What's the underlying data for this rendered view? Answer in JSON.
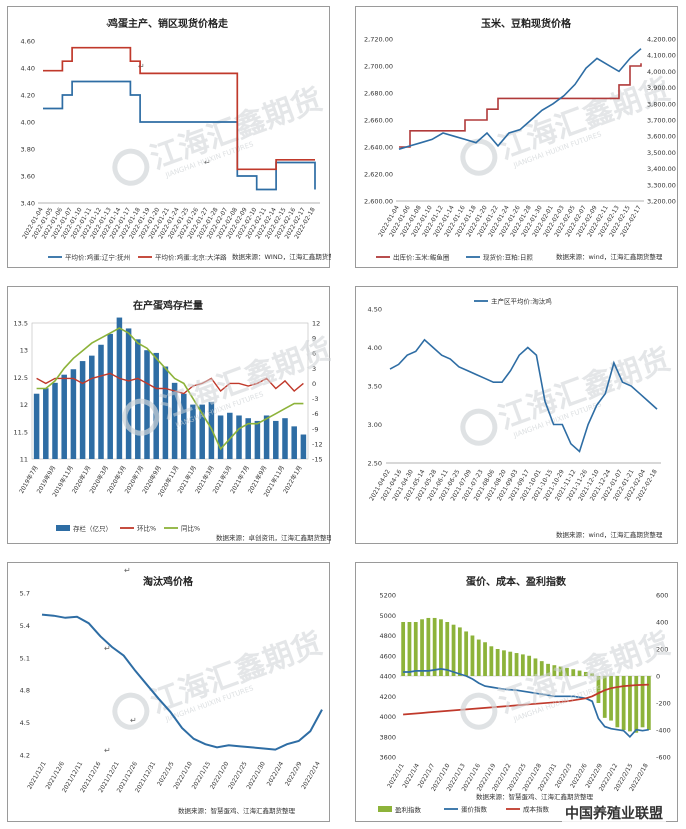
{
  "footer": {
    "brand": "中国养殖业联盟"
  },
  "watermark": {
    "cn": "江海汇鑫期货",
    "en": "JIANGHAI HUIXIN FUTURES"
  },
  "return_mark": "↵",
  "chart_data": [
    {
      "id": "p1",
      "type": "line",
      "title": "鸡蛋主产、销区现货价格走",
      "ylim": [
        3.4,
        4.6
      ],
      "yticks": [
        "3.40",
        "3.60",
        "3.80",
        "4.00",
        "4.20",
        "4.40",
        "4.60"
      ],
      "x": [
        "2022-01-04",
        "2022-01-05",
        "2022-01-06",
        "2022-01-07",
        "2022-01-10",
        "2022-01-11",
        "2022-01-12",
        "2022-01-13",
        "2022-01-14",
        "2022-01-17",
        "2022-01-18",
        "2022-01-19",
        "2022-01-20",
        "2022-01-21",
        "2022-01-24",
        "2022-01-25",
        "2022-01-26",
        "2022-01-27",
        "2022-01-28",
        "2022-02-07",
        "2022-02-08",
        "2022-02-09",
        "2022-02-10",
        "2022-02-11",
        "2022-02-14",
        "2022-02-15",
        "2022-02-16",
        "2022-02-17",
        "2022-02-18"
      ],
      "series": [
        {
          "name": "平均价:鸡蛋:辽宁:抚州",
          "color": "#2e6da4",
          "values": [
            4.1,
            4.1,
            4.2,
            4.3,
            4.3,
            4.3,
            4.3,
            4.3,
            4.3,
            4.2,
            4.0,
            4.0,
            4.0,
            4.0,
            4.0,
            4.0,
            4.0,
            4.0,
            4.0,
            4.0,
            3.6,
            3.6,
            3.5,
            3.5,
            3.7,
            3.7,
            3.7,
            3.7,
            3.5
          ]
        },
        {
          "name": "平均价:鸡蛋:北京:大洋路",
          "color": "#c0392b",
          "values": [
            4.38,
            4.38,
            4.45,
            4.55,
            4.55,
            4.55,
            4.55,
            4.55,
            4.55,
            4.45,
            4.36,
            4.36,
            4.36,
            4.36,
            4.36,
            4.36,
            4.36,
            4.36,
            4.36,
            4.36,
            3.65,
            3.65,
            3.65,
            3.65,
            3.72,
            3.72,
            3.72,
            3.72,
            3.72
          ]
        }
      ],
      "source": "数据来源：WIND，江海汇鑫期货整理"
    },
    {
      "id": "p2",
      "type": "line",
      "title": "玉米、豆粕现货价格",
      "ylim": [
        2600,
        2720
      ],
      "yticks": [
        "2,600.00",
        "2,620.00",
        "2,640.00",
        "2,660.00",
        "2,680.00",
        "2,700.00",
        "2,720.00"
      ],
      "y2lim": [
        3200,
        4200
      ],
      "y2ticks": [
        "3,200.00",
        "3,300.00",
        "3,400.00",
        "3,500.00",
        "3,600.00",
        "3,700.00",
        "3,800.00",
        "3,900.00",
        "4,000.00",
        "4,100.00",
        "4,200.00"
      ],
      "x": [
        "2022-01-04",
        "2022-01-06",
        "2022-01-08",
        "2022-01-10",
        "2022-01-12",
        "2022-01-14",
        "2022-01-16",
        "2022-01-18",
        "2022-01-20",
        "2022-01-22",
        "2022-01-24",
        "2022-01-26",
        "2022-01-28",
        "2022-01-30",
        "2022-02-01",
        "2022-02-03",
        "2022-02-05",
        "2022-02-07",
        "2022-02-09",
        "2022-02-11",
        "2022-02-13",
        "2022-02-15",
        "2022-02-17"
      ],
      "series": [
        {
          "name": "出库价:玉米:鲅鱼圈",
          "axis": "left",
          "color": "#b03a3a",
          "values": [
            2640,
            2652,
            2652,
            2652,
            2652,
            2652,
            2660,
            2660,
            2668,
            2676,
            2676,
            2676,
            2676,
            2676,
            2676,
            2676,
            2676,
            2676,
            2676,
            2676,
            2686,
            2700,
            2702
          ]
        },
        {
          "name": "现货价:豆粕:日照",
          "axis": "right",
          "color": "#2e6da4",
          "values": [
            3520,
            3540,
            3560,
            3580,
            3620,
            3600,
            3580,
            3560,
            3620,
            3540,
            3620,
            3640,
            3700,
            3760,
            3800,
            3850,
            3920,
            4020,
            4080,
            4040,
            4000,
            4080,
            4140
          ]
        }
      ],
      "source": "数据来源：wind，江海汇鑫期货整理"
    },
    {
      "id": "p3",
      "type": "bar",
      "title": "在产蛋鸡存栏量",
      "ylim": [
        11,
        13.5
      ],
      "yticks": [
        "11",
        "11.5",
        "12",
        "12.5",
        "13",
        "13.5"
      ],
      "y2lim": [
        -15,
        12
      ],
      "y2ticks": [
        "12",
        "9",
        "6",
        "3",
        "0",
        "-3",
        "-6",
        "-9",
        "-12",
        "-15"
      ],
      "xticks": [
        "2019年7月",
        "2019年9月",
        "2019年11月",
        "2020年1月",
        "2020年3月",
        "2020年5月",
        "2020年7月",
        "2020年9月",
        "2020年11月",
        "2021年1月",
        "2021年3月",
        "2021年5月",
        "2021年7月",
        "2021年9月",
        "2021年11月",
        "2022年1月"
      ],
      "bar_values": [
        12.2,
        12.3,
        12.4,
        12.55,
        12.65,
        12.8,
        12.9,
        13.1,
        13.3,
        13.6,
        13.4,
        13.2,
        13.0,
        12.95,
        12.7,
        12.4,
        12.2,
        12.0,
        12.0,
        12.05,
        11.8,
        11.85,
        11.8,
        11.75,
        11.7,
        11.8,
        11.7,
        11.75,
        11.6,
        11.45
      ],
      "mom_values": [
        1.0,
        0.0,
        1.0,
        1.0,
        1.0,
        0.0,
        1.0,
        1.5,
        2.0,
        1.0,
        0.5,
        1.0,
        0.0,
        -1.0,
        -1.0,
        -1.5,
        -2.0,
        -0.5,
        0.0,
        1.0,
        -1.5,
        0.0,
        0.0,
        -0.5,
        0.0,
        1.0,
        -1.0,
        0.5,
        -1.5,
        0.0
      ],
      "yoy_values": [
        -1.0,
        -1.0,
        0.5,
        3.0,
        5.0,
        6.5,
        8.0,
        9.0,
        10.0,
        11.0,
        10.0,
        8.0,
        7.0,
        5.0,
        3.0,
        1.0,
        0.0,
        -3.0,
        -6.0,
        -9.0,
        -13.0,
        -11.0,
        -9.0,
        -8.0,
        -8.0,
        -7.0,
        -6.0,
        -5.0,
        -4.0,
        -4.0
      ],
      "series_names": [
        "存栏（亿只）",
        "环比%",
        "同比%"
      ],
      "colors": [
        "#2e6da4",
        "#c0392b",
        "#8db33a"
      ],
      "source": "数据来源：卓创资讯，江海汇鑫期货整理"
    },
    {
      "id": "p4",
      "type": "line",
      "title": "",
      "ylim": [
        2.5,
        4.5
      ],
      "yticks": [
        "2.50",
        "3.00",
        "3.50",
        "4.00",
        "4.50"
      ],
      "xticks": [
        "2021-04-02",
        "2021-04-16",
        "2021-04-30",
        "2021-05-14",
        "2021-05-28",
        "2021-06-11",
        "2021-06-25",
        "2021-07-09",
        "2021-07-23",
        "2021-08-06",
        "2021-08-20",
        "2021-09-03",
        "2021-09-17",
        "2021-10-01",
        "2021-10-15",
        "2021-10-29",
        "2021-11-12",
        "2021-11-26",
        "2021-12-10",
        "2021-12-24",
        "2022-01-07",
        "2022-01-21",
        "2022-02-04",
        "2022-02-18"
      ],
      "series": [
        {
          "name": "主产区平均价:淘汰鸡",
          "color": "#2e6da4",
          "values": [
            3.72,
            3.78,
            3.9,
            3.95,
            4.1,
            4.0,
            3.9,
            3.85,
            3.75,
            3.7,
            3.65,
            3.6,
            3.55,
            3.55,
            3.7,
            3.9,
            4.0,
            3.9,
            3.3,
            3.0,
            3.0,
            2.75,
            2.65,
            3.0,
            3.25,
            3.4,
            3.8,
            3.55,
            3.5,
            3.4,
            3.3,
            3.2
          ]
        }
      ],
      "source": "数据来源：wind，江海汇鑫期货整理"
    },
    {
      "id": "p5",
      "type": "line",
      "title": "淘汰鸡价格",
      "ylim": [
        4.2,
        5.7
      ],
      "yticks": [
        "4.2",
        "4.5",
        "4.8",
        "5.1",
        "5.4",
        "5.7"
      ],
      "xticks": [
        "2021/12/1",
        "2021/12/6",
        "2021/12/11",
        "2021/12/16",
        "2021/12/21",
        "2021/12/26",
        "2021/12/31",
        "2022/1/5",
        "2022/1/10",
        "2022/1/15",
        "2022/1/20",
        "2022/1/25",
        "2022/1/30",
        "2022/2/4",
        "2022/2/9",
        "2022/2/14"
      ],
      "series": [
        {
          "name": "淘汰鸡价格",
          "color": "#2e6da4",
          "values": [
            5.5,
            5.49,
            5.47,
            5.48,
            5.42,
            5.3,
            5.2,
            5.12,
            4.98,
            4.85,
            4.72,
            4.6,
            4.45,
            4.35,
            4.3,
            4.27,
            4.29,
            4.28,
            4.27,
            4.26,
            4.25,
            4.3,
            4.33,
            4.42,
            4.62
          ]
        }
      ],
      "source": "数据来源：智慧蛋鸡、江海汇鑫期货整理"
    },
    {
      "id": "p6",
      "type": "bar",
      "title": "蛋价、成本、盈利指数",
      "ylim": [
        3600,
        5200
      ],
      "yticks": [
        "3600",
        "3800",
        "4000",
        "4200",
        "4400",
        "4600",
        "4800",
        "5000",
        "5200"
      ],
      "y2lim": [
        -600,
        600
      ],
      "y2ticks": [
        "-600",
        "-400",
        "-200",
        "0",
        "200",
        "400",
        "600"
      ],
      "xticks": [
        "2022/1/1",
        "2022/1/4",
        "2022/1/7",
        "2022/1/10",
        "2022/1/13",
        "2022/1/16",
        "2022/1/19",
        "2022/1/22",
        "2022/1/25",
        "2022/1/28",
        "2022/1/31",
        "2022/2/3",
        "2022/2/6",
        "2022/2/9",
        "2022/2/12",
        "2022/2/15",
        "2022/2/18"
      ],
      "profit_values": [
        400,
        400,
        400,
        420,
        430,
        430,
        420,
        400,
        380,
        360,
        330,
        300,
        270,
        250,
        220,
        200,
        190,
        180,
        170,
        160,
        150,
        130,
        110,
        90,
        80,
        70,
        60,
        50,
        40,
        30,
        20,
        -200,
        -310,
        -330,
        -380,
        -400,
        -410,
        -420,
        -380,
        -400
      ],
      "price_values": [
        4440,
        4440,
        4450,
        4450,
        4450,
        4460,
        4470,
        4460,
        4440,
        4420,
        4400,
        4370,
        4330,
        4300,
        4290,
        4280,
        4270,
        4265,
        4260,
        4250,
        4240,
        4230,
        4220,
        4210,
        4200,
        4200,
        4200,
        4200,
        4190,
        4180,
        4150,
        3980,
        3900,
        3880,
        3870,
        3860,
        3800,
        3870,
        3860,
        3870
      ],
      "cost_values": [
        4020,
        4025,
        4030,
        4035,
        4040,
        4045,
        4050,
        4055,
        4060,
        4065,
        4070,
        4075,
        4080,
        4085,
        4090,
        4095,
        4100,
        4105,
        4110,
        4115,
        4120,
        4125,
        4130,
        4135,
        4140,
        4145,
        4150,
        4160,
        4170,
        4180,
        4200,
        4230,
        4260,
        4280,
        4290,
        4300,
        4305,
        4310,
        4312,
        4315
      ],
      "series_names": [
        "盈利指数",
        "蛋价指数",
        "成本指数"
      ],
      "colors": [
        "#8db33a",
        "#2e6da4",
        "#c0392b"
      ],
      "source": "数据来源：智慧蛋鸡、江海汇鑫期货整理"
    }
  ]
}
